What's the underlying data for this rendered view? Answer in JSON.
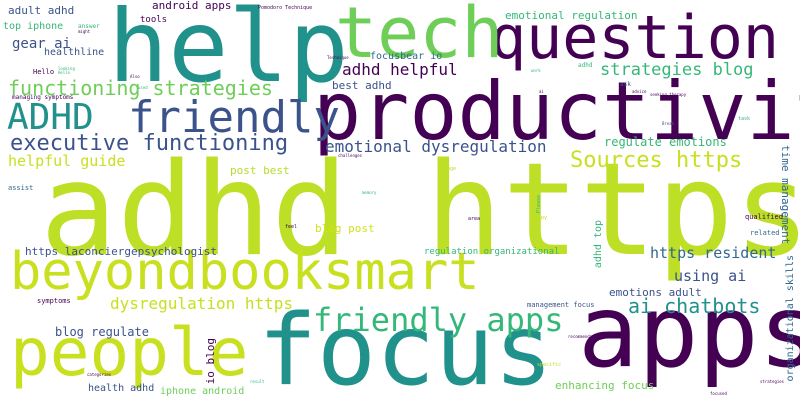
{
  "title": "",
  "palette": {
    "dark_purple": "#440154",
    "indigo": "#3b528b",
    "blue": "#31688e",
    "teal": "#21918c",
    "green": "#35b779",
    "lime": "#5ec962",
    "yellow_green": "#bddf26",
    "yellow": "#fde725"
  },
  "words": [
    {
      "text": "adhd https",
      "color": "#bddf26"
    },
    {
      "text": "apps",
      "color": "#440154"
    },
    {
      "text": "help",
      "color": "#21918c"
    },
    {
      "text": "focus",
      "color": "#21918c"
    },
    {
      "text": "beyondbooksmart",
      "color": "#c8e020"
    },
    {
      "text": "productivity",
      "color": "#440154"
    },
    {
      "text": "people",
      "color": "#c8e020"
    },
    {
      "text": "question",
      "color": "#440154"
    },
    {
      "text": "tech",
      "color": "#6ece58"
    },
    {
      "text": "friendly",
      "color": "#3b528b"
    },
    {
      "text": "ADHD",
      "color": "#21918c"
    },
    {
      "text": "friendly apps",
      "color": "#35b779"
    },
    {
      "text": "executive functioning",
      "color": "#3b528b"
    },
    {
      "text": "functioning strategies",
      "color": "#6ece58"
    },
    {
      "text": "Sources https",
      "color": "#c8e020"
    },
    {
      "text": "emotional dysregulation",
      "color": "#3b528b"
    },
    {
      "text": "strategies blog",
      "color": "#35b779"
    },
    {
      "text": "dysregulation https",
      "color": "#c8e020"
    },
    {
      "text": "adhd helpful",
      "color": "#440154"
    },
    {
      "text": "ai chatbots",
      "color": "#21918c"
    },
    {
      "text": "helpful guide",
      "color": "#c8e020"
    },
    {
      "text": "https resident",
      "color": "#31688e"
    },
    {
      "text": "using ai",
      "color": "#3b528b"
    },
    {
      "text": "gear ai",
      "color": "#3b528b"
    },
    {
      "text": "https laconciergepsychologist",
      "color": "#3b528b"
    },
    {
      "text": "regulate emotions",
      "color": "#35b779"
    },
    {
      "text": "blog regulate",
      "color": "#3b528b"
    },
    {
      "text": "enhancing focus",
      "color": "#6ece58"
    },
    {
      "text": "blog post",
      "color": "#d2e21b"
    },
    {
      "text": "best adhd",
      "color": "#3b528b"
    },
    {
      "text": "emotional regulation",
      "color": "#35b779"
    },
    {
      "text": "post best",
      "color": "#b5de2b"
    },
    {
      "text": "emotions adult",
      "color": "#3b528b"
    },
    {
      "text": "adult adhd",
      "color": "#3b528b"
    },
    {
      "text": "time management",
      "color": "#31688e"
    },
    {
      "text": "health adhd",
      "color": "#3b528b"
    },
    {
      "text": "io blog",
      "color": "#440154"
    },
    {
      "text": "iphone android",
      "color": "#6ece58"
    },
    {
      "text": "android apps",
      "color": "#440154"
    },
    {
      "text": "organizational skills",
      "color": "#31688e"
    },
    {
      "text": "regulation organizational",
      "color": "#35b779"
    },
    {
      "text": "adhd top",
      "color": "#35b779"
    },
    {
      "text": "focusbear io",
      "color": "#31688e"
    },
    {
      "text": "top iphone",
      "color": "#35b779"
    },
    {
      "text": "healthline",
      "color": "#3b528b"
    },
    {
      "text": "tools",
      "color": "#440154"
    },
    {
      "text": "management focus",
      "color": "#3b528b"
    },
    {
      "text": "assist",
      "color": "#31688e"
    },
    {
      "text": "symptoms",
      "color": "#440154"
    },
    {
      "text": "related",
      "color": "#31688e"
    },
    {
      "text": "qualified",
      "color": "#440154"
    },
    {
      "text": "Hello",
      "color": "#440154"
    },
    {
      "text": "answer",
      "color": "#35b779"
    },
    {
      "text": "managing symptoms",
      "color": "#440154"
    },
    {
      "text": "Pomodoro Technique",
      "color": "#440154"
    },
    {
      "text": "ask",
      "color": "#3b528b"
    },
    {
      "text": "task",
      "color": "#35b779"
    },
    {
      "text": "challenges",
      "color": "#440154"
    },
    {
      "text": "area",
      "color": "#440154"
    },
    {
      "text": "Please",
      "color": "#35b779"
    },
    {
      "text": "manage",
      "color": "#bddf26"
    },
    {
      "text": "Happy",
      "color": "#bddf26"
    },
    {
      "text": "feel",
      "color": "#440154"
    },
    {
      "text": "specific",
      "color": "#bddf26"
    },
    {
      "text": "adhd",
      "color": "#35b779"
    },
    {
      "text": "Technique",
      "color": "#440154"
    },
    {
      "text": "might",
      "color": "#440154"
    },
    {
      "text": "looking",
      "color": "#35b779"
    },
    {
      "text": "Also",
      "color": "#440154"
    },
    {
      "text": "Break",
      "color": "#3b528b"
    },
    {
      "text": "advice",
      "color": "#440154"
    },
    {
      "text": "recommendation",
      "color": "#440154"
    },
    {
      "text": "categories",
      "color": "#440154"
    },
    {
      "text": "strategies",
      "color": "#440154"
    },
    {
      "text": "focused",
      "color": "#440154"
    },
    {
      "text": "work",
      "color": "#35b779"
    },
    {
      "text": "used",
      "color": "#35b779"
    },
    {
      "text": "result",
      "color": "#35b779"
    },
    {
      "text": "seeking therapy",
      "color": "#440154"
    },
    {
      "text": "memory",
      "color": "#35b779"
    },
    {
      "text": "ai",
      "color": "#440154"
    },
    {
      "text": "Hello",
      "color": "#35b779"
    }
  ]
}
